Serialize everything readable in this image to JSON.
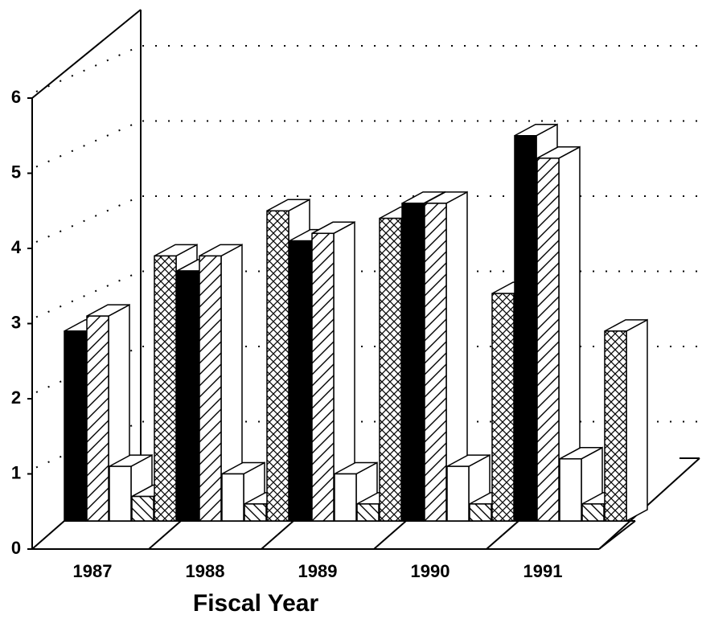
{
  "chart_data": {
    "type": "bar3d",
    "xlabel": "Fiscal Year",
    "categories": [
      "1987",
      "1988",
      "1989",
      "1990",
      "1991"
    ],
    "series": [
      {
        "color": "#000000",
        "pattern": "solid",
        "values": [
          2.9,
          3.7,
          4.1,
          4.6,
          5.5
        ]
      },
      {
        "color": "#ffffff",
        "pattern": "diagonal",
        "values": [
          3.1,
          3.9,
          4.2,
          4.6,
          5.2
        ]
      },
      {
        "color": "#ffffff",
        "pattern": "none",
        "values": [
          1.1,
          1.0,
          1.0,
          1.1,
          1.2
        ]
      },
      {
        "color": "#ffffff",
        "pattern": "back-diagonal",
        "values": [
          0.7,
          0.6,
          0.6,
          0.6,
          0.6
        ]
      },
      {
        "color": "#ffffff",
        "pattern": "crosshatch",
        "values": [
          3.9,
          4.5,
          4.4,
          3.4,
          2.9
        ]
      }
    ],
    "ylim": [
      0,
      6
    ],
    "yticks": [
      0,
      1,
      2,
      3,
      4,
      5,
      6
    ],
    "grid": true
  }
}
